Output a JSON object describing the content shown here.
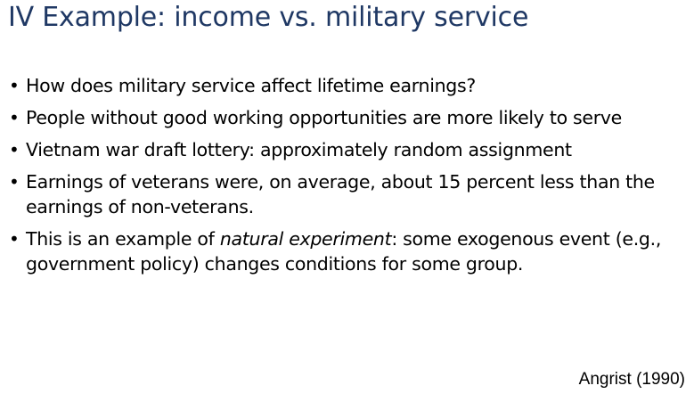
{
  "slide": {
    "title": "IV Example: income vs. military service",
    "title_color": "#1f3864",
    "bullet_glyph": "•",
    "bullets": [
      {
        "text": "How does military service affect lifetime earnings?"
      },
      {
        "text": "People without good working opportunities are more likely to serve"
      },
      {
        "text": "Vietnam war draft lottery: approximately random assignment"
      },
      {
        "line1": "Earnings of veterans were, on average, about 15 percent less than the",
        "line2": "earnings of non-veterans."
      },
      {
        "prefix": "This is an example of ",
        "emphasis": "natural experiment",
        "suffix": ": some exogenous event (e.g.,",
        "line2": "government policy) changes conditions for some group."
      }
    ],
    "citation": "Angrist (1990)"
  }
}
